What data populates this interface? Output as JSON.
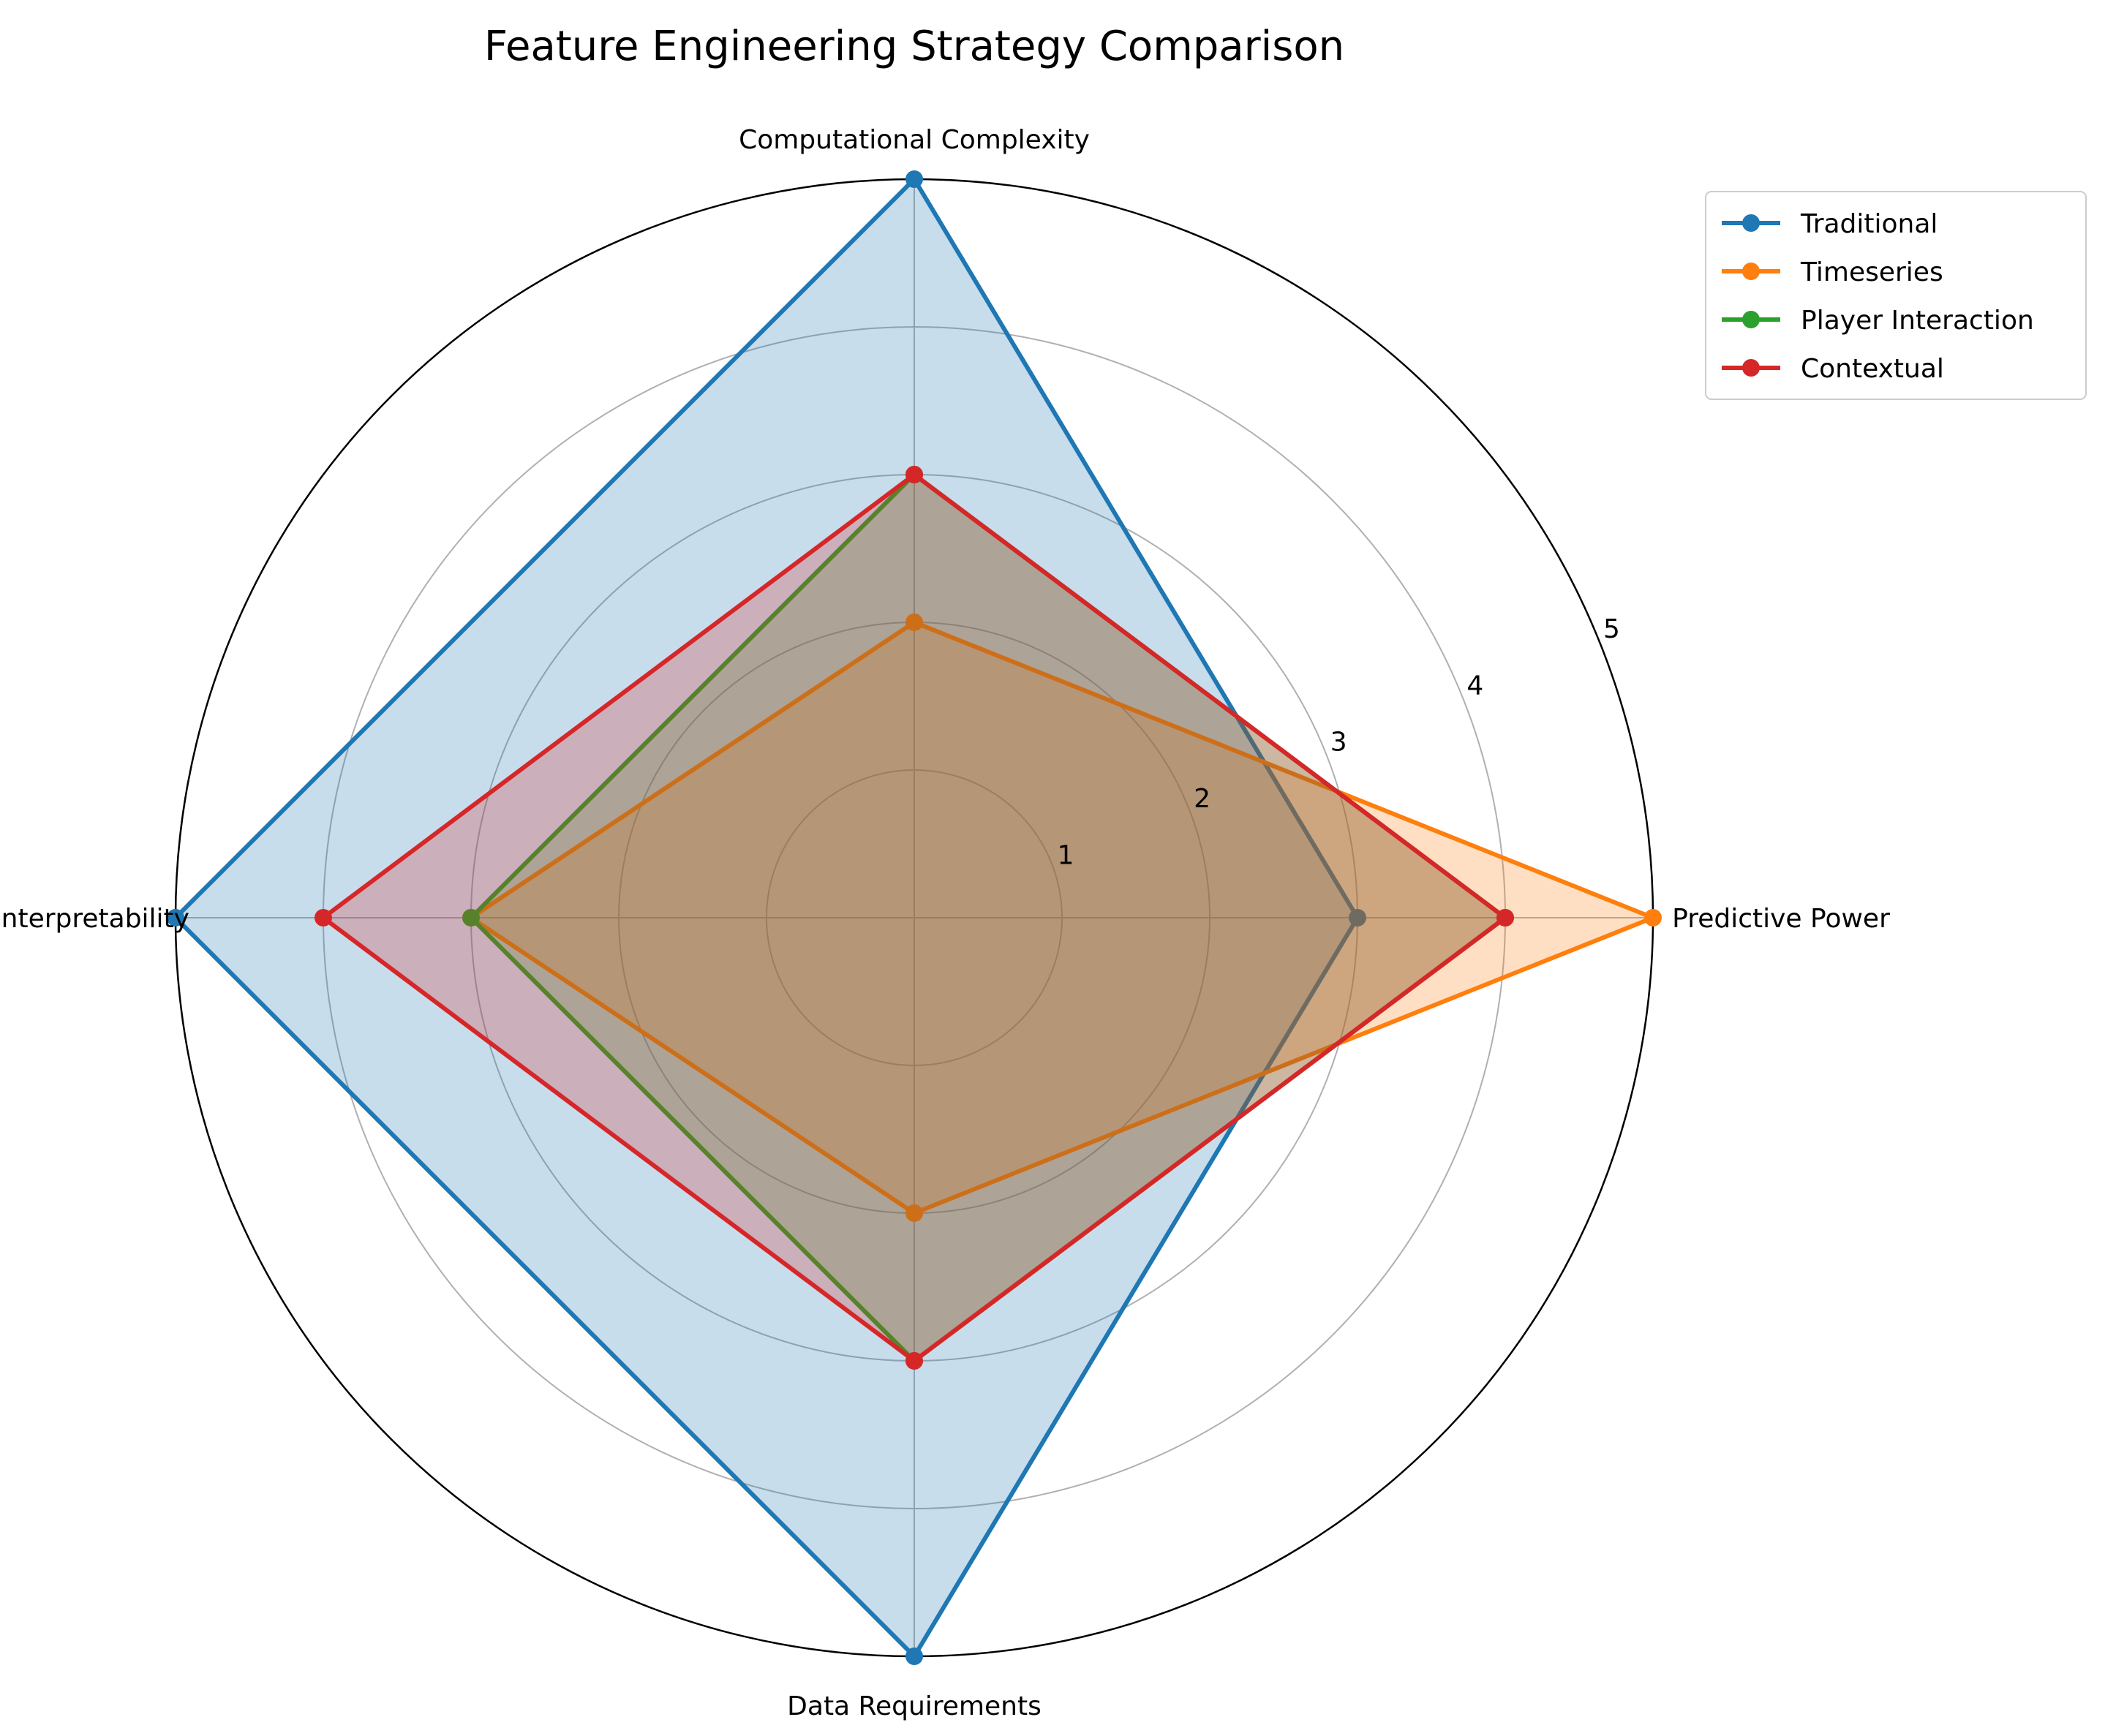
{
  "chart_data": {
    "type": "radar",
    "title": "Feature Engineering Strategy Comparison",
    "axes": [
      "Predictive Power",
      "Computational Complexity",
      "Interpretability",
      "Data Requirements"
    ],
    "rlim": [
      0,
      5
    ],
    "rticks": [
      "1",
      "2",
      "3",
      "4",
      "5"
    ],
    "grid": true,
    "legend_position": "top-right",
    "series": [
      {
        "name": "Traditional",
        "color": "#1f77b4",
        "values": [
          3,
          5,
          5,
          5
        ]
      },
      {
        "name": "Timeseries",
        "color": "#ff7f0e",
        "values": [
          5,
          2,
          3,
          2
        ]
      },
      {
        "name": "Player Interaction",
        "color": "#2ca02c",
        "values": [
          4,
          3,
          3,
          3
        ]
      },
      {
        "name": "Contextual",
        "color": "#d62728",
        "values": [
          4,
          3,
          4,
          3
        ]
      }
    ]
  }
}
